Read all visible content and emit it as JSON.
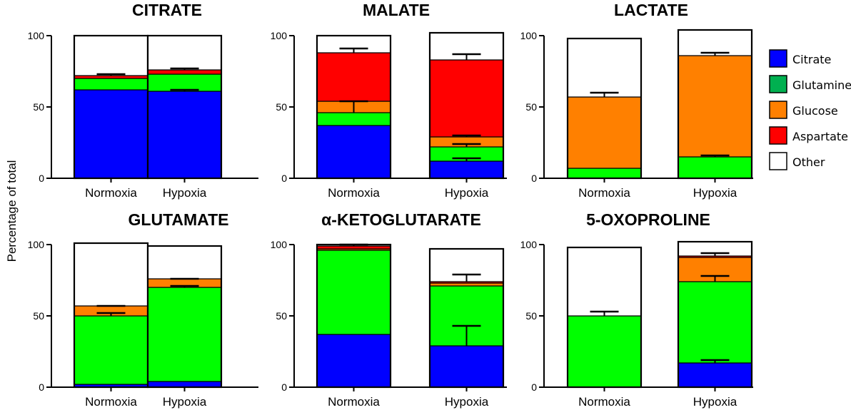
{
  "ylabel": "Percentage of total",
  "legend": [
    {
      "name": "Citrate",
      "color": "#0000ff"
    },
    {
      "name": "Glutamine",
      "color": "#00b050"
    },
    {
      "name": "Glucose",
      "color": "#ff8000"
    },
    {
      "name": "Aspartate",
      "color": "#ff0000"
    },
    {
      "name": "Other",
      "color": "#ffffff"
    }
  ],
  "chart_data": [
    {
      "type": "bar",
      "stacked": true,
      "title": "CITRATE",
      "categories": [
        "Normoxia",
        "Hypoxia"
      ],
      "ylim": [
        0,
        100
      ],
      "yticks": [
        0,
        50,
        100
      ],
      "series": [
        {
          "name": "Citrate",
          "color": "#0000ff",
          "values": [
            62,
            61
          ]
        },
        {
          "name": "Glutamine",
          "color": "#00ff00",
          "values": [
            8,
            12
          ]
        },
        {
          "name": "Glucose",
          "color": "#ff8000",
          "values": [
            0,
            0
          ]
        },
        {
          "name": "Aspartate",
          "color": "#ff0000",
          "values": [
            2,
            3
          ]
        },
        {
          "name": "Other",
          "color": "#ffffff",
          "values": [
            28,
            24
          ]
        }
      ],
      "error_bars": [
        {
          "category": 0,
          "value": 72,
          "error": 1
        },
        {
          "category": 1,
          "value": 61,
          "error": 1
        },
        {
          "category": 1,
          "value": 76,
          "error": 1
        }
      ]
    },
    {
      "type": "bar",
      "stacked": true,
      "title": "MALATE",
      "categories": [
        "Normoxia",
        "Hypoxia"
      ],
      "ylim": [
        0,
        100
      ],
      "yticks": [
        0,
        50,
        100
      ],
      "series": [
        {
          "name": "Citrate",
          "color": "#0000ff",
          "values": [
            37,
            12
          ]
        },
        {
          "name": "Glutamine",
          "color": "#00ff00",
          "values": [
            9,
            10
          ]
        },
        {
          "name": "Glucose",
          "color": "#ff8000",
          "values": [
            8,
            7
          ]
        },
        {
          "name": "Aspartate",
          "color": "#ff0000",
          "values": [
            34,
            54
          ]
        },
        {
          "name": "Other",
          "color": "#ffffff",
          "values": [
            12,
            19
          ]
        }
      ],
      "error_bars": [
        {
          "category": 0,
          "value": 46,
          "error": 8
        },
        {
          "category": 0,
          "value": 88,
          "error": 3
        },
        {
          "category": 1,
          "value": 12,
          "error": 2
        },
        {
          "category": 1,
          "value": 22,
          "error": 2
        },
        {
          "category": 1,
          "value": 29,
          "error": 1
        },
        {
          "category": 1,
          "value": 83,
          "error": 4
        }
      ]
    },
    {
      "type": "bar",
      "stacked": true,
      "title": "LACTATE",
      "categories": [
        "Normoxia",
        "Hypoxia"
      ],
      "ylim": [
        0,
        100
      ],
      "yticks": [
        0,
        50,
        100
      ],
      "series": [
        {
          "name": "Citrate",
          "color": "#0000ff",
          "values": [
            0,
            0
          ]
        },
        {
          "name": "Glutamine",
          "color": "#00ff00",
          "values": [
            7,
            15
          ]
        },
        {
          "name": "Glucose",
          "color": "#ff8000",
          "values": [
            50,
            71
          ]
        },
        {
          "name": "Aspartate",
          "color": "#ff0000",
          "values": [
            0,
            0
          ]
        },
        {
          "name": "Other",
          "color": "#ffffff",
          "values": [
            41,
            18
          ]
        }
      ],
      "error_bars": [
        {
          "category": 0,
          "value": 57,
          "error": 3
        },
        {
          "category": 1,
          "value": 15,
          "error": 1
        },
        {
          "category": 1,
          "value": 86,
          "error": 2
        }
      ]
    },
    {
      "type": "bar",
      "stacked": true,
      "title": "GLUTAMATE",
      "categories": [
        "Normoxia",
        "Hypoxia"
      ],
      "ylim": [
        0,
        100
      ],
      "yticks": [
        0,
        50,
        100
      ],
      "series": [
        {
          "name": "Citrate",
          "color": "#0000ff",
          "values": [
            2,
            4
          ]
        },
        {
          "name": "Glutamine",
          "color": "#00ff00",
          "values": [
            48,
            66
          ]
        },
        {
          "name": "Glucose",
          "color": "#ff8000",
          "values": [
            7,
            6
          ]
        },
        {
          "name": "Aspartate",
          "color": "#ff0000",
          "values": [
            0,
            0
          ]
        },
        {
          "name": "Other",
          "color": "#ffffff",
          "values": [
            44,
            23
          ]
        }
      ],
      "error_bars": [
        {
          "category": 0,
          "value": 50,
          "error": 2
        },
        {
          "category": 0,
          "value": 57,
          "error": 0
        },
        {
          "category": 1,
          "value": 70,
          "error": 1
        },
        {
          "category": 1,
          "value": 76,
          "error": 0
        }
      ]
    },
    {
      "type": "bar",
      "stacked": true,
      "title": "α-KETOGLUTARATE",
      "categories": [
        "Normoxia",
        "Hypoxia"
      ],
      "ylim": [
        0,
        100
      ],
      "yticks": [
        0,
        50,
        100
      ],
      "series": [
        {
          "name": "Citrate",
          "color": "#0000ff",
          "values": [
            37,
            29
          ]
        },
        {
          "name": "Glutamine",
          "color": "#00ff00",
          "values": [
            59,
            42
          ]
        },
        {
          "name": "Glucose",
          "color": "#ff8000",
          "values": [
            1,
            2
          ]
        },
        {
          "name": "Aspartate",
          "color": "#ff0000",
          "values": [
            2,
            1
          ]
        },
        {
          "name": "Other",
          "color": "#ffffff",
          "values": [
            1,
            23
          ]
        }
      ],
      "error_bars": [
        {
          "category": 0,
          "value": 99,
          "error": 1
        },
        {
          "category": 1,
          "value": 29,
          "error": 14
        },
        {
          "category": 1,
          "value": 74,
          "error": 5
        }
      ]
    },
    {
      "type": "bar",
      "stacked": true,
      "title": "5-OXOPROLINE",
      "categories": [
        "Normoxia",
        "Hypoxia"
      ],
      "ylim": [
        0,
        100
      ],
      "yticks": [
        0,
        50,
        100
      ],
      "series": [
        {
          "name": "Citrate",
          "color": "#0000ff",
          "values": [
            0,
            17
          ]
        },
        {
          "name": "Glutamine",
          "color": "#00ff00",
          "values": [
            50,
            57
          ]
        },
        {
          "name": "Glucose",
          "color": "#ff8000",
          "values": [
            0,
            17
          ]
        },
        {
          "name": "Aspartate",
          "color": "#ff0000",
          "values": [
            0,
            1
          ]
        },
        {
          "name": "Other",
          "color": "#ffffff",
          "values": [
            48,
            10
          ]
        }
      ],
      "error_bars": [
        {
          "category": 0,
          "value": 50,
          "error": 3
        },
        {
          "category": 1,
          "value": 17,
          "error": 2
        },
        {
          "category": 1,
          "value": 74,
          "error": 4
        },
        {
          "category": 1,
          "value": 92,
          "error": 2
        }
      ]
    }
  ]
}
